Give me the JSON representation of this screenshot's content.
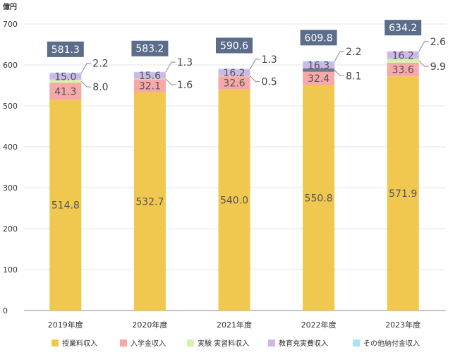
{
  "chart_data": {
    "type": "bar",
    "stacked": true,
    "unit_label": "億円",
    "categories": [
      "2019年度",
      "2020年度",
      "2021年度",
      "2022年度",
      "2023年度"
    ],
    "ylim": [
      0,
      700
    ],
    "yticks": [
      0,
      100,
      200,
      300,
      400,
      500,
      600,
      700
    ],
    "grid": true,
    "legend_position": "bottom",
    "series": [
      {
        "name": "授業料収入",
        "color": "#f0c850",
        "values": [
          514.8,
          532.7,
          540.0,
          550.8,
          571.9
        ],
        "labels": [
          "514.8",
          "532.7",
          "540.0",
          "550.8",
          "571.9"
        ]
      },
      {
        "name": "入学金収入",
        "color": "#f7a8a8",
        "values": [
          41.3,
          32.1,
          32.6,
          32.4,
          33.6
        ],
        "labels": [
          "41.3",
          "32.1",
          "32.6",
          "32.4",
          "33.6"
        ]
      },
      {
        "name": "実験 実習料収入",
        "color": "#d8f0b0",
        "values": [
          8.0,
          1.6,
          0.5,
          8.1,
          9.9
        ],
        "labels": [
          "8.0",
          "1.6",
          "0.5",
          "8.1",
          "9.9"
        ]
      },
      {
        "name": "教育充実費収入",
        "color": "#cdb8e8",
        "values": [
          15.0,
          15.6,
          16.2,
          16.3,
          16.2
        ],
        "labels": [
          "15.0",
          "15.6",
          "16.2",
          "16.3",
          "16.2"
        ]
      },
      {
        "name": "その他納付金収入",
        "color": "#a8e4f5",
        "values": [
          2.2,
          1.3,
          1.3,
          2.2,
          2.6
        ],
        "labels": [
          "2.2",
          "1.3",
          "1.3",
          "2.2",
          "2.6"
        ]
      }
    ],
    "totals": [
      581.3,
      583.2,
      590.6,
      609.8,
      634.2
    ],
    "total_labels": [
      "581.3",
      "583.2",
      "590.6",
      "609.8",
      "634.2"
    ],
    "colors": {
      "total_box": "#5b6d8a",
      "grid": "#e6e6e6",
      "axis": "#888888",
      "dark_band": "#6b7890"
    }
  }
}
